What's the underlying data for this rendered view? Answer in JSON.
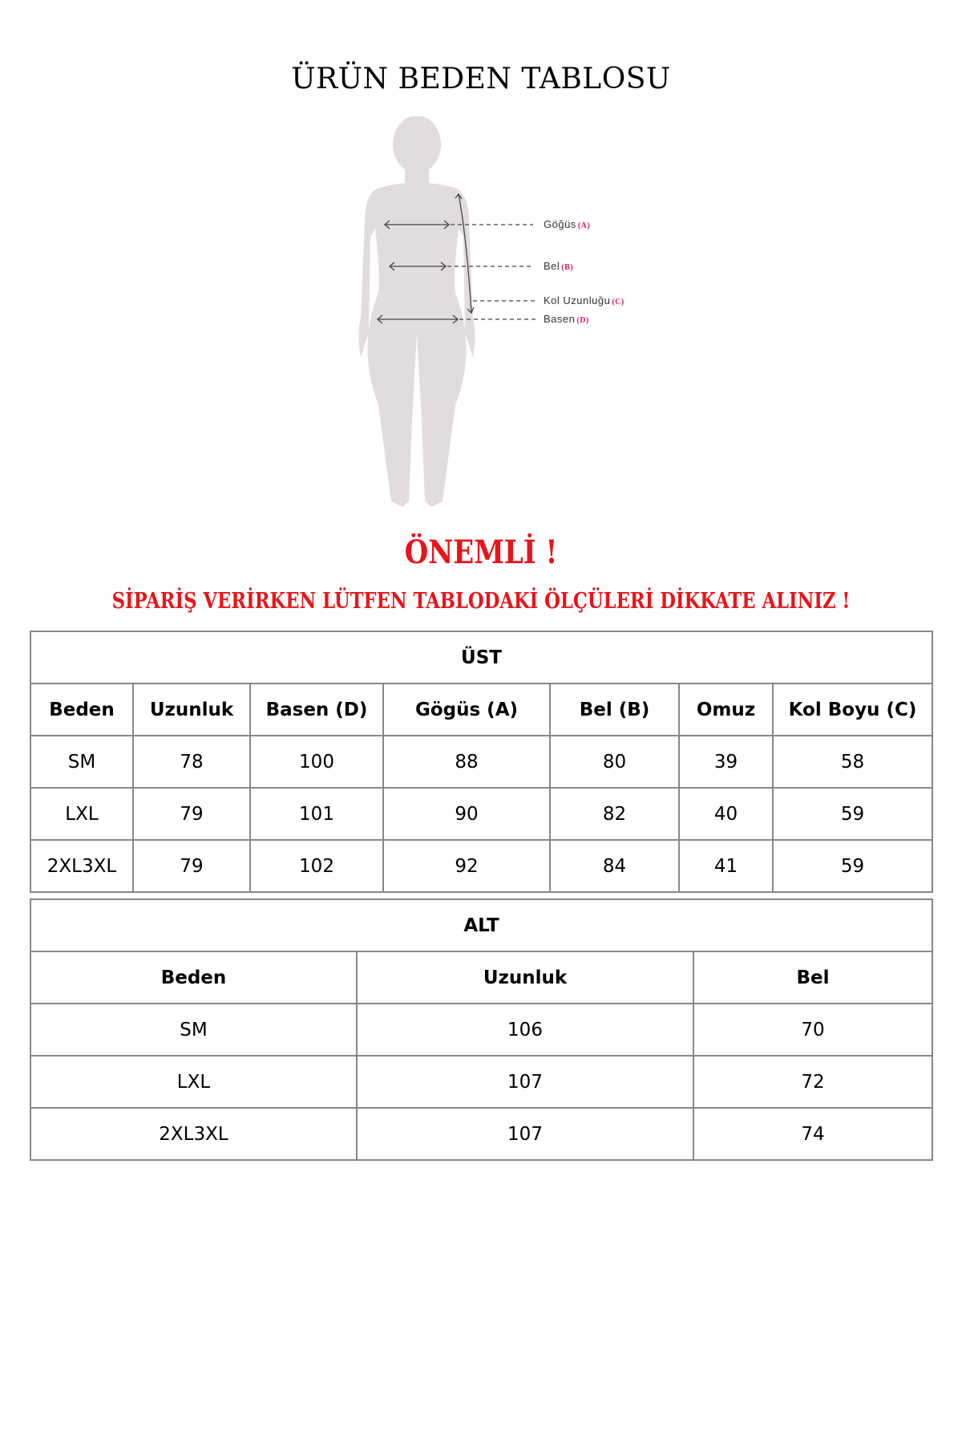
{
  "title": "ÜRÜN BEDEN TABLOSU",
  "figure": {
    "labels": [
      {
        "name": "Göğüs",
        "code": "(A)"
      },
      {
        "name": "Bel",
        "code": "(B)"
      },
      {
        "name": "Kol Uzunluğu",
        "code": "(C)"
      },
      {
        "name": "Basen",
        "code": "(D)"
      }
    ],
    "silhouette_color": "#e3dcdd",
    "accent_color": "#d0196e"
  },
  "important": "ÖNEMLİ !",
  "warning": "SİPARİŞ VERİRKEN LÜTFEN TABLODAKİ ÖLÇÜLERİ DİKKATE ALINIZ !",
  "warning_color": "#e8141a",
  "ust_table": {
    "title": "ÜST",
    "headers": [
      "Beden",
      "Uzunluk",
      "Basen (D)",
      "Gögüs (A)",
      "Bel (B)",
      "Omuz",
      "Kol Boyu (C)"
    ],
    "rows": [
      [
        "SM",
        "78",
        "100",
        "88",
        "80",
        "39",
        "58"
      ],
      [
        "LXL",
        "79",
        "101",
        "90",
        "82",
        "40",
        "59"
      ],
      [
        "2XL3XL",
        "79",
        "102",
        "92",
        "84",
        "41",
        "59"
      ]
    ]
  },
  "alt_table": {
    "title": "ALT",
    "headers": [
      "Beden",
      "Uzunluk",
      "Bel"
    ],
    "rows": [
      [
        "SM",
        "106",
        "70"
      ],
      [
        "LXL",
        "107",
        "72"
      ],
      [
        "2XL3XL",
        "107",
        "74"
      ]
    ]
  }
}
